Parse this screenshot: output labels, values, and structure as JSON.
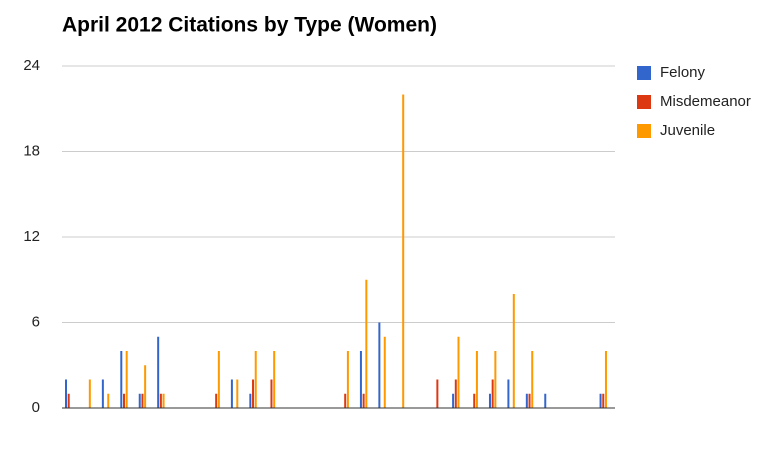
{
  "chart_data": {
    "type": "bar",
    "title": "April 2012 Citations by Type (Women)",
    "categories": [
      null,
      null,
      null,
      null,
      null,
      null,
      null,
      null,
      null,
      null,
      null,
      null,
      null,
      null,
      null,
      null,
      null,
      null,
      null,
      null,
      null,
      null,
      null,
      null,
      null,
      null,
      null,
      null,
      null,
      null
    ],
    "series": [
      {
        "name": "Felony",
        "color": "#3366cc",
        "values": [
          2,
          0,
          2,
          4,
          1,
          5,
          0,
          0,
          0,
          2,
          1,
          0,
          0,
          0,
          0,
          0,
          4,
          6,
          0,
          0,
          0,
          1,
          0,
          1,
          2,
          1,
          1,
          0,
          0,
          1
        ]
      },
      {
        "name": "Misdemeanor",
        "color": "#dc3912",
        "values": [
          1,
          0,
          0,
          1,
          1,
          1,
          0,
          0,
          1,
          0,
          2,
          2,
          0,
          0,
          0,
          1,
          1,
          0,
          0,
          0,
          2,
          2,
          1,
          2,
          0,
          1,
          0,
          0,
          0,
          1
        ]
      },
      {
        "name": "Juvenile",
        "color": "#ff9900",
        "values": [
          0,
          2,
          1,
          4,
          3,
          1,
          0,
          0,
          4,
          2,
          4,
          4,
          0,
          0,
          0,
          4,
          9,
          5,
          22,
          0,
          0,
          5,
          4,
          4,
          8,
          4,
          0,
          0,
          0,
          4
        ]
      }
    ],
    "ylim": [
      0,
      24
    ],
    "yticks": [
      0,
      6,
      12,
      18,
      24
    ],
    "grid": true,
    "legend": "right"
  }
}
